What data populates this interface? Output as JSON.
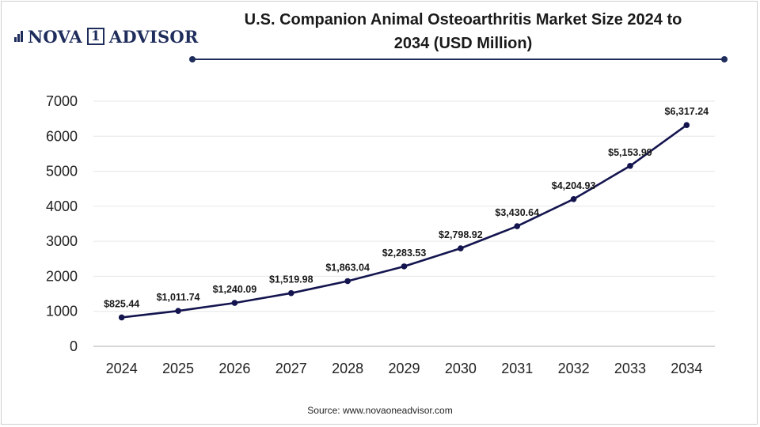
{
  "brand": {
    "part1": "NOVA",
    "box": "1",
    "part2": "ADVISOR",
    "color": "#1f2d5c"
  },
  "header": {
    "title_line1": "U.S. Companion Animal Osteoarthritis Market Size 2024 to",
    "title_line2": "2034 (USD Million)"
  },
  "footer": {
    "source": "Source: www.novaoneadvisor.com"
  },
  "chart_data": {
    "type": "line",
    "title": "U.S. Companion Animal Osteoarthritis Market Size 2024 to 2034 (USD Million)",
    "xlabel": "",
    "ylabel": "",
    "categories": [
      "2024",
      "2025",
      "2026",
      "2027",
      "2028",
      "2029",
      "2030",
      "2031",
      "2032",
      "2033",
      "2034"
    ],
    "series": [
      {
        "name": "Market Size (USD Million)",
        "values": [
          825.44,
          1011.74,
          1240.09,
          1519.98,
          1863.04,
          2283.53,
          2798.92,
          3430.64,
          4204.93,
          5153.99,
          6317.24
        ],
        "labels": [
          "$825.44",
          "$1,011.74",
          "$1,240.09",
          "$1,519.98",
          "$1,863.04",
          "$2,283.53",
          "$2,798.92",
          "$3,430.64",
          "$4,204.93",
          "$5,153.99",
          "$6,317.24"
        ],
        "color": "#14154f"
      }
    ],
    "yticks": [
      "0",
      "1000",
      "2000",
      "3000",
      "4000",
      "5000",
      "6000",
      "7000"
    ],
    "ylim": [
      0,
      7000
    ],
    "grid": true,
    "legend": "none"
  }
}
